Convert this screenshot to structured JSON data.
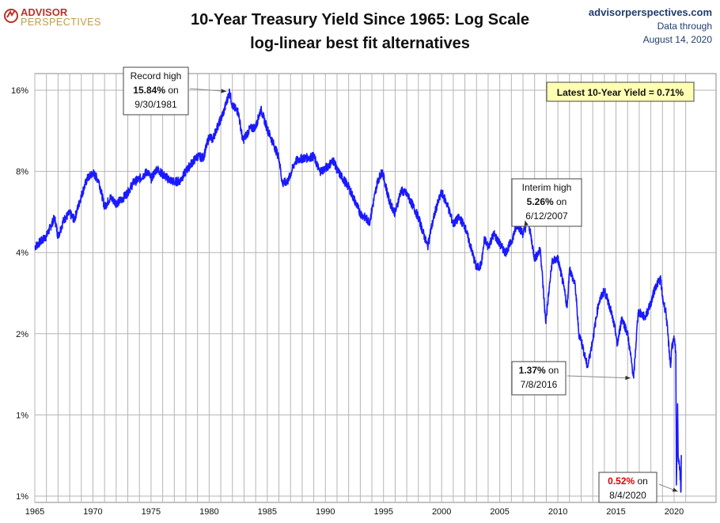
{
  "logo": {
    "line1": "ADVISOR",
    "line2": "PERSPECTIVES"
  },
  "source": {
    "site": "advisorperspectives.com",
    "line2": "Data through",
    "line3": "August 14, 2020"
  },
  "chart_data": {
    "type": "line",
    "title": "10-Year Treasury Yield Since 1965: Log Scale",
    "subtitle": "log-linear best fit alternatives",
    "y_scale": "log2",
    "y_ticks": [
      {
        "value": 0.5,
        "label": "1%"
      },
      {
        "value": 1,
        "label": "1%"
      },
      {
        "value": 2,
        "label": "2%"
      },
      {
        "value": 4,
        "label": "4%"
      },
      {
        "value": 8,
        "label": "8%"
      },
      {
        "value": 16,
        "label": "16%"
      }
    ],
    "x_ticks": [
      1965,
      1970,
      1975,
      1980,
      1985,
      1990,
      1995,
      2000,
      2005,
      2010,
      2015,
      2020
    ],
    "xlim": [
      1965,
      2021.2
    ],
    "ylim": [
      0.5,
      19
    ],
    "grid": true,
    "series_color": "#1a1aff",
    "series": [
      {
        "x": [
          1965.0,
          1966.0,
          1966.7,
          1967.0,
          1967.5,
          1968.0,
          1968.4,
          1969.0,
          1969.5,
          1970.0,
          1970.5,
          1971.0,
          1971.5,
          1972.0,
          1972.5,
          1973.0,
          1973.5,
          1974.0,
          1974.7,
          1975.0,
          1975.5,
          1976.0,
          1976.5,
          1977.0,
          1977.5,
          1978.0,
          1978.5,
          1979.0,
          1979.5,
          1980.0,
          1980.3,
          1980.6,
          1981.0,
          1981.3,
          1981.75,
          1982.0,
          1982.5,
          1982.9,
          1983.5,
          1984.0,
          1984.45,
          1985.0,
          1985.5,
          1986.0,
          1986.3,
          1986.8,
          1987.4,
          1987.8,
          1988.5,
          1989.0,
          1989.5,
          1990.0,
          1990.7,
          1991.0,
          1992.0,
          1993.0,
          1993.8,
          1994.5,
          1994.9,
          1995.5,
          1996.0,
          1996.5,
          1997.0,
          1997.5,
          1998.0,
          1998.8,
          1999.0,
          1999.5,
          2000.0,
          2000.5,
          2001.0,
          2001.5,
          2002.0,
          2002.5,
          2003.0,
          2003.4,
          2003.7,
          2004.0,
          2004.5,
          2005.0,
          2005.5,
          2006.0,
          2006.5,
          2007.0,
          2007.45,
          2008.0,
          2008.5,
          2008.95,
          2009.5,
          2010.0,
          2010.5,
          2010.8,
          2011.0,
          2011.5,
          2011.8,
          2012.0,
          2012.55,
          2013.0,
          2013.5,
          2014.0,
          2014.5,
          2015.0,
          2015.1,
          2015.5,
          2016.0,
          2016.52,
          2016.9,
          2017.0,
          2017.5,
          2018.0,
          2018.4,
          2018.85,
          2019.0,
          2019.3,
          2019.7,
          2019.8,
          2020.0,
          2020.15,
          2020.2,
          2020.3,
          2020.35,
          2020.45,
          2020.59,
          2020.62
        ],
        "y": [
          4.2,
          4.6,
          5.4,
          4.6,
          5.3,
          5.6,
          5.3,
          6.5,
          7.5,
          7.9,
          7.4,
          5.9,
          6.4,
          6.1,
          6.3,
          6.7,
          7.3,
          7.5,
          8.0,
          7.5,
          8.2,
          7.8,
          7.5,
          7.3,
          7.4,
          8.0,
          8.6,
          9.1,
          9.0,
          10.8,
          10.5,
          11.4,
          12.5,
          13.5,
          15.84,
          14.0,
          13.3,
          10.4,
          11.5,
          11.7,
          13.6,
          11.5,
          10.2,
          9.0,
          7.2,
          7.4,
          8.7,
          8.9,
          9.0,
          9.1,
          8.0,
          8.2,
          8.8,
          8.1,
          7.0,
          5.6,
          5.2,
          7.4,
          8.0,
          6.2,
          5.6,
          6.8,
          6.6,
          6.0,
          5.4,
          4.2,
          4.7,
          5.8,
          6.7,
          6.0,
          5.1,
          5.4,
          5.0,
          4.2,
          3.5,
          3.6,
          4.5,
          4.2,
          4.7,
          4.3,
          4.0,
          4.4,
          5.1,
          4.7,
          5.26,
          3.8,
          4.1,
          2.2,
          3.7,
          3.8,
          3.0,
          2.5,
          3.5,
          3.0,
          2.0,
          1.9,
          1.5,
          1.9,
          2.6,
          2.9,
          2.5,
          2.0,
          1.8,
          2.3,
          2.0,
          1.37,
          2.4,
          2.4,
          2.3,
          2.6,
          3.0,
          3.2,
          2.7,
          2.4,
          1.5,
          1.8,
          1.9,
          1.7,
          0.55,
          1.1,
          0.7,
          0.66,
          0.52,
          0.71
        ]
      }
    ],
    "annotations": [
      {
        "line1": "Record high",
        "value": "15.84%",
        "suffix": "on",
        "date": "9/30/1981",
        "x": 1981.75,
        "y": 15.84
      },
      {
        "line1": "Interim high",
        "value": "5.26%",
        "suffix": "on",
        "date": "6/12/2007",
        "x": 2007.45,
        "y": 5.26
      },
      {
        "value": "1.37%",
        "suffix": "on",
        "date": "7/8/2016",
        "x": 2016.52,
        "y": 1.37
      },
      {
        "value": "0.52%",
        "suffix": "on",
        "date": "8/4/2020",
        "x": 2020.59,
        "y": 0.52,
        "color": "#dd0000"
      }
    ],
    "latest_label": "Latest 10-Year Yield = 0.71%"
  }
}
